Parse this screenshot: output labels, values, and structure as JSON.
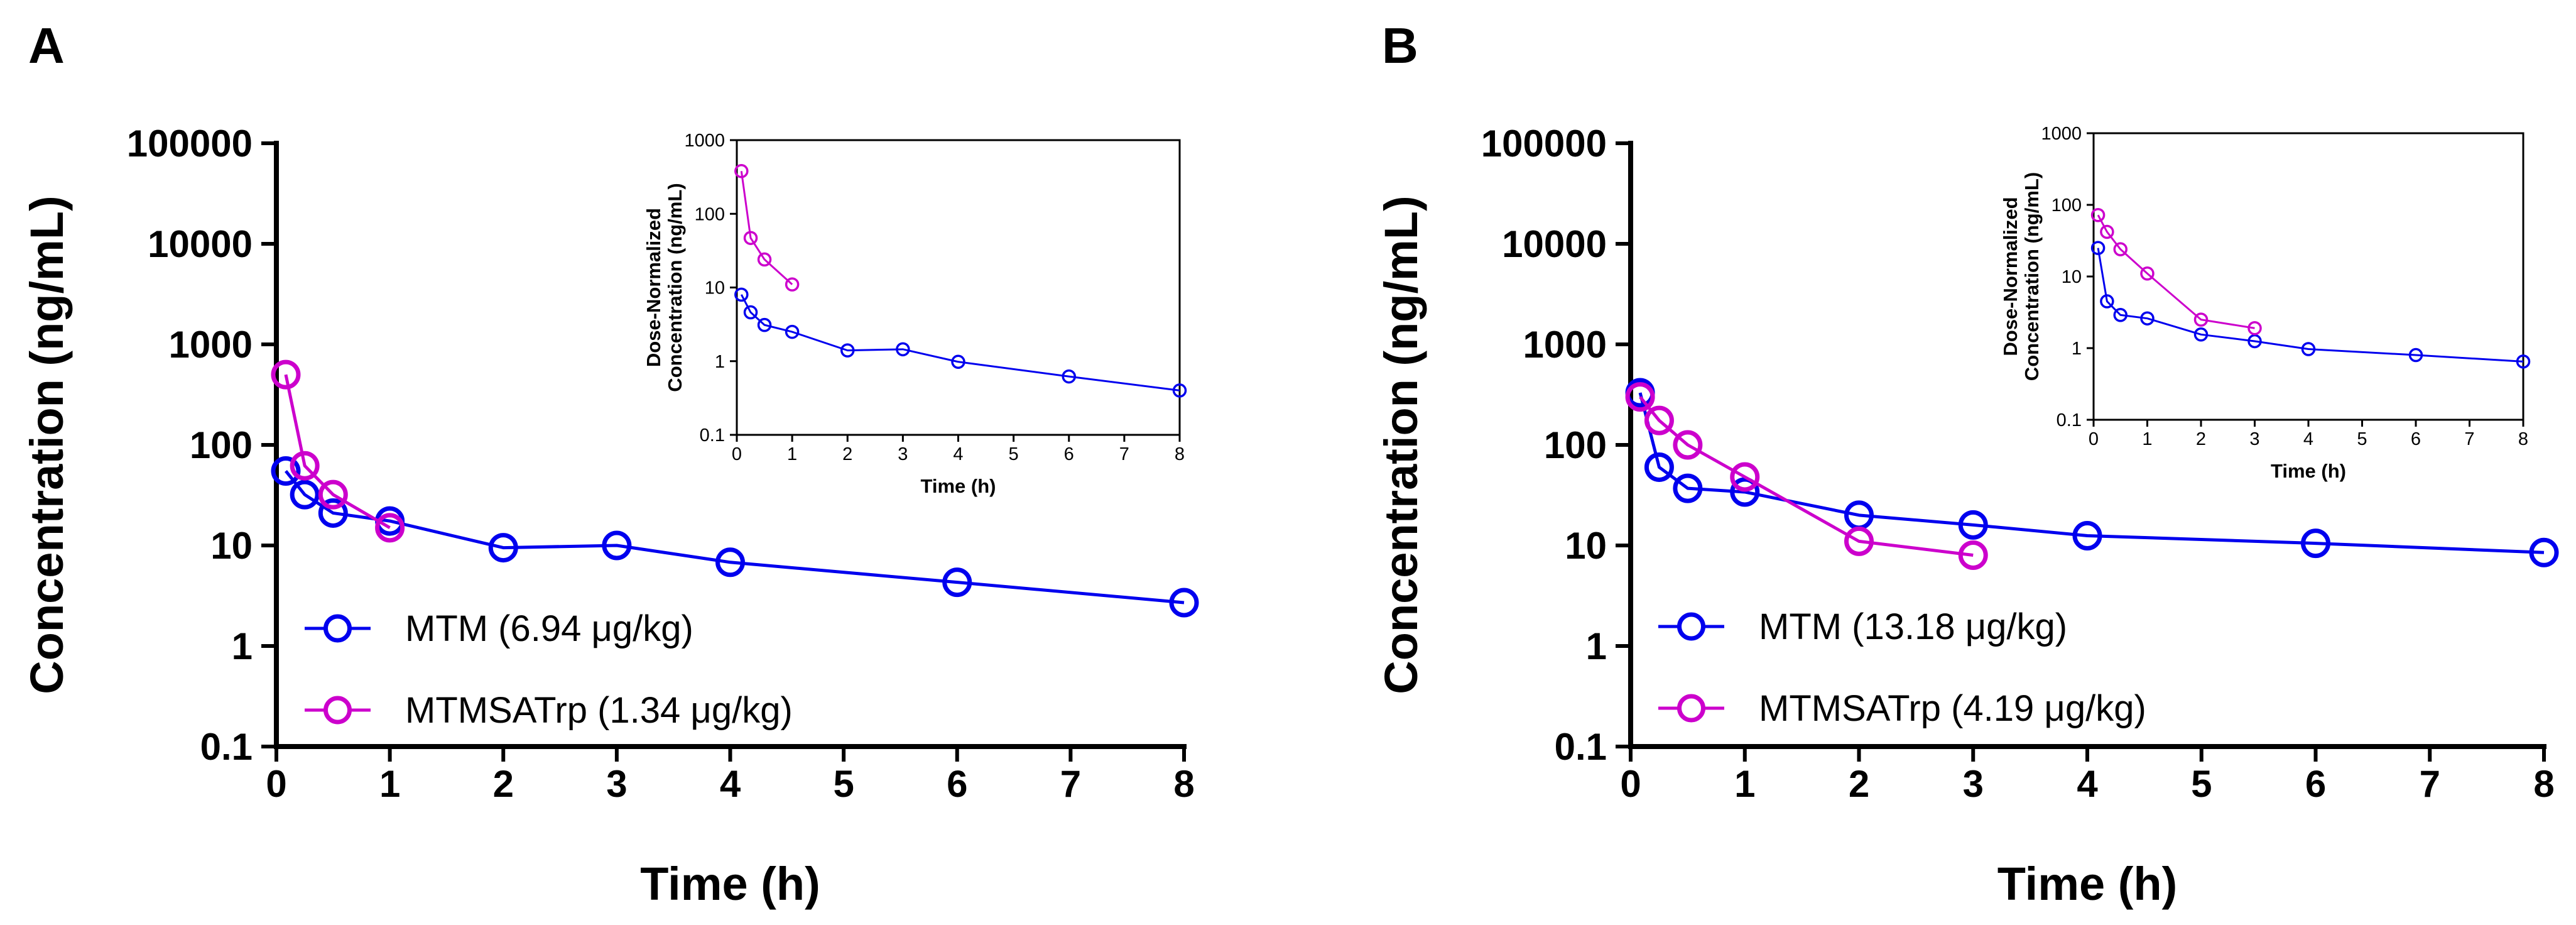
{
  "chart_data": [
    {
      "id": "A",
      "type": "line",
      "panel_label": "A",
      "xlabel": "Time (h)",
      "ylabel": "Concentration (ng/mL)",
      "yscale": "log",
      "xlim": [
        0,
        8
      ],
      "ylim": [
        0.1,
        100000
      ],
      "xticks": [
        "0",
        "1",
        "2",
        "3",
        "4",
        "5",
        "6",
        "7",
        "8"
      ],
      "yticks": [
        "0.1",
        "1",
        "10",
        "100",
        "1000",
        "10000",
        "100000"
      ],
      "legend_position": "lower-left",
      "series": [
        {
          "name": "MTM (6.94 μg/kg)",
          "color": "#0000ee",
          "x": [
            0.083,
            0.25,
            0.5,
            1,
            2,
            3,
            4,
            6,
            8
          ],
          "y": [
            55,
            32,
            21,
            17.5,
            9.5,
            10,
            6.8,
            4.3,
            2.7
          ]
        },
        {
          "name": "MTMSATrp (1.34 μg/kg)",
          "color": "#cc00cc",
          "x": [
            0.083,
            0.25,
            0.5,
            1
          ],
          "y": [
            500,
            62,
            32,
            15
          ]
        }
      ],
      "inset": {
        "xlabel": "Time (h)",
        "ylabel_lines": [
          "Dose-Normalized",
          "Concentration (ng/mL)"
        ],
        "yscale": "log",
        "xlim": [
          0,
          8
        ],
        "ylim": [
          0.1,
          1000
        ],
        "xticks": [
          "0",
          "1",
          "2",
          "3",
          "4",
          "5",
          "6",
          "7",
          "8"
        ],
        "yticks": [
          "0.1",
          "1",
          "10",
          "100",
          "1000"
        ],
        "series": [
          {
            "name": "MTM",
            "color": "#0000ee",
            "x": [
              0.083,
              0.25,
              0.5,
              1,
              2,
              3,
              4,
              6,
              8
            ],
            "y": [
              8,
              4.6,
              3.1,
              2.5,
              1.4,
              1.45,
              0.98,
              0.62,
              0.4
            ]
          },
          {
            "name": "MTMSATrp",
            "color": "#cc00cc",
            "x": [
              0.083,
              0.25,
              0.5,
              1
            ],
            "y": [
              380,
              47,
              24,
              11
            ]
          }
        ]
      }
    },
    {
      "id": "B",
      "type": "line",
      "panel_label": "B",
      "xlabel": "Time (h)",
      "ylabel": "Concentration (ng/mL)",
      "yscale": "log",
      "xlim": [
        0,
        8
      ],
      "ylim": [
        0.1,
        100000
      ],
      "xticks": [
        "0",
        "1",
        "2",
        "3",
        "4",
        "5",
        "6",
        "7",
        "8"
      ],
      "yticks": [
        "0.1",
        "1",
        "10",
        "100",
        "1000",
        "10000",
        "100000"
      ],
      "legend_position": "lower-left",
      "series": [
        {
          "name": "MTM (13.18 μg/kg)",
          "color": "#0000ee",
          "x": [
            0.083,
            0.25,
            0.5,
            1,
            2,
            3,
            4,
            6,
            8
          ],
          "y": [
            330,
            60,
            37,
            34,
            20,
            16,
            12.5,
            10.5,
            8.5
          ]
        },
        {
          "name": "MTMSATrp (4.19 μg/kg)",
          "color": "#cc00cc",
          "x": [
            0.083,
            0.25,
            0.5,
            1,
            2,
            3
          ],
          "y": [
            300,
            175,
            100,
            48,
            11,
            8
          ]
        }
      ],
      "inset": {
        "xlabel": "Time (h)",
        "ylabel_lines": [
          "Dose-Normalized",
          "Concentration (ng/mL)"
        ],
        "yscale": "log",
        "xlim": [
          0,
          8
        ],
        "ylim": [
          0.1,
          1000
        ],
        "xticks": [
          "0",
          "1",
          "2",
          "3",
          "4",
          "5",
          "6",
          "7",
          "8"
        ],
        "yticks": [
          "0.1",
          "1",
          "10",
          "100",
          "1000"
        ],
        "series": [
          {
            "name": "MTM",
            "color": "#0000ee",
            "x": [
              0.083,
              0.25,
              0.5,
              1,
              2,
              3,
              4,
              6,
              8
            ],
            "y": [
              25,
              4.5,
              2.9,
              2.6,
              1.55,
              1.25,
              0.97,
              0.8,
              0.65
            ]
          },
          {
            "name": "MTMSATrp",
            "color": "#cc00cc",
            "x": [
              0.083,
              0.25,
              0.5,
              1,
              2,
              3
            ],
            "y": [
              72,
              42,
              24,
              11,
              2.5,
              1.9
            ]
          }
        ]
      }
    }
  ]
}
